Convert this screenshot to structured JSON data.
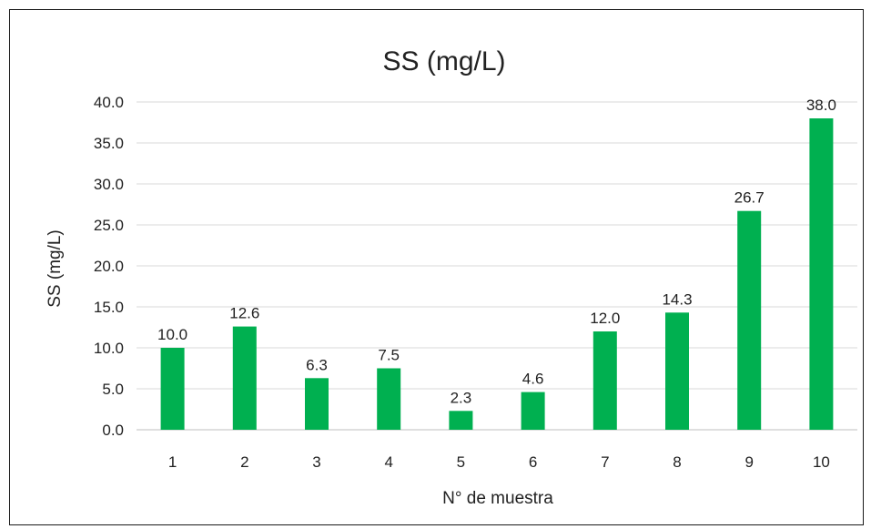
{
  "chart_data": {
    "type": "bar",
    "title": "SS (mg/L)",
    "xlabel": "N° de muestra",
    "ylabel": "SS (mg/L)",
    "categories": [
      "1",
      "2",
      "3",
      "4",
      "5",
      "6",
      "7",
      "8",
      "9",
      "10"
    ],
    "values": [
      10.0,
      12.6,
      6.3,
      7.5,
      2.3,
      4.6,
      12.0,
      14.3,
      26.7,
      38.0
    ],
    "data_labels": [
      "10.0",
      "12.6",
      "6.3",
      "7.5",
      "2.3",
      "4.6",
      "12.0",
      "14.3",
      "26.7",
      "38.0"
    ],
    "ylim": [
      0,
      40
    ],
    "yticks": [
      "0.0",
      "5.0",
      "10.0",
      "15.0",
      "20.0",
      "25.0",
      "30.0",
      "35.0",
      "40.0"
    ],
    "grid": true,
    "legend": "none",
    "bar_color": "#00b050",
    "grid_color": "#d9d9d9"
  }
}
